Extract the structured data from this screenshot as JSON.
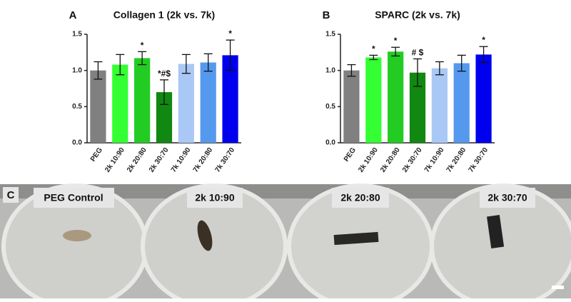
{
  "chart_data": [
    {
      "type": "bar",
      "panel": "A",
      "title": "Collagen 1 (2k vs. 7k)",
      "categories": [
        "PEG",
        "2k 10:90",
        "2k 20:80",
        "2k 30:70",
        "7k 10:90",
        "7k 20:80",
        "7k 30:70"
      ],
      "values": [
        1.0,
        1.08,
        1.17,
        0.7,
        1.09,
        1.11,
        1.21
      ],
      "errors": [
        0.12,
        0.14,
        0.09,
        0.17,
        0.13,
        0.12,
        0.21
      ],
      "annotations": [
        null,
        null,
        "*",
        "*#$",
        null,
        null,
        "*"
      ],
      "colors": [
        "#808080",
        "#33ff33",
        "#22cc22",
        "#118811",
        "#a9c8f5",
        "#5599ee",
        "#0000ee"
      ],
      "ylim": [
        0,
        1.5
      ],
      "yticks": [
        {
          "value": 0,
          "label": "0.0"
        },
        {
          "value": 0.5,
          "label": "0.5"
        },
        {
          "value": 1,
          "label": "1.0"
        },
        {
          "value": 1.5,
          "label": "1.5"
        }
      ]
    },
    {
      "type": "bar",
      "panel": "B",
      "title": "SPARC (2k vs. 7k)",
      "categories": [
        "PEG",
        "2k 10:90",
        "2k 20:80",
        "2k 30:70",
        "7k 10:90",
        "7k 20:80",
        "7k 30:70"
      ],
      "values": [
        1.0,
        1.18,
        1.26,
        0.97,
        1.03,
        1.1,
        1.22
      ],
      "errors": [
        0.08,
        0.03,
        0.06,
        0.19,
        0.09,
        0.11,
        0.11
      ],
      "annotations": [
        null,
        "*",
        "*",
        "# $",
        null,
        null,
        "*"
      ],
      "colors": [
        "#808080",
        "#33ff33",
        "#22cc22",
        "#118811",
        "#a9c8f5",
        "#5599ee",
        "#0000ee"
      ],
      "ylim": [
        0,
        1.5
      ],
      "yticks": [
        {
          "value": 0,
          "label": "0.0"
        },
        {
          "value": 0.5,
          "label": "0.5"
        },
        {
          "value": 1,
          "label": "1.0"
        },
        {
          "value": 1.5,
          "label": "1.5"
        }
      ]
    }
  ],
  "photo": {
    "panel": "C",
    "labels": [
      "PEG Control",
      "2k 10:90",
      "2k 20:80",
      "2k 30:70"
    ]
  }
}
